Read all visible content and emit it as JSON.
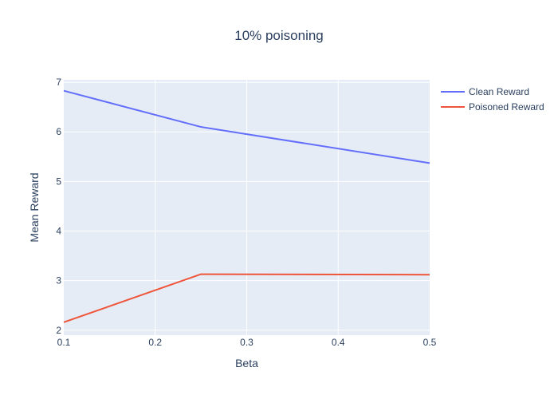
{
  "chart_data": {
    "type": "line",
    "title": "10% poisoning",
    "xlabel": "Beta",
    "ylabel": "Mean Reward",
    "xlim": [
      0.1,
      0.5
    ],
    "ylim": [
      1.9,
      7.05
    ],
    "x_ticks": [
      0.1,
      0.2,
      0.3,
      0.4,
      0.5
    ],
    "x_tick_labels": [
      "0.1",
      "0.2",
      "0.3",
      "0.4",
      "0.5"
    ],
    "y_ticks": [
      2,
      3,
      4,
      5,
      6,
      7
    ],
    "y_tick_labels": [
      "2",
      "3",
      "4",
      "5",
      "6",
      "7"
    ],
    "grid": true,
    "legend_position": "top-right",
    "series": [
      {
        "name": "Clean Reward",
        "color": "#636efa",
        "x": [
          0.1,
          0.25,
          0.5
        ],
        "y": [
          6.83,
          6.1,
          5.37
        ]
      },
      {
        "name": "Poisoned Reward",
        "color": "#ef553b",
        "x": [
          0.1,
          0.25,
          0.5
        ],
        "y": [
          2.16,
          3.13,
          3.12
        ]
      }
    ]
  },
  "colors": {
    "plot_background": "#e5ecf6",
    "grid": "#ffffff",
    "text": "#2a3f5f"
  }
}
